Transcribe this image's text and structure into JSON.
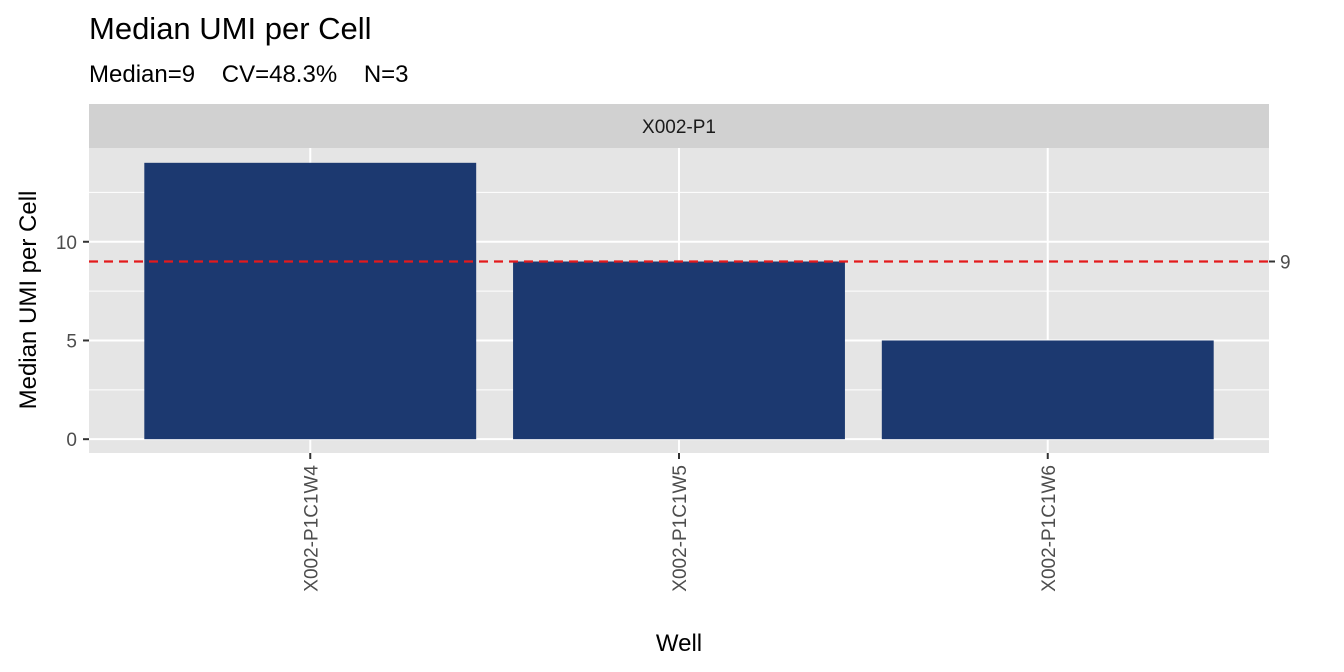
{
  "chart_data": {
    "type": "bar",
    "title": "Median UMI per Cell",
    "subtitle": "Median=9    CV=48.3%    N=3",
    "facet_label": "X002-P1",
    "xlabel": "Well",
    "ylabel": "Median UMI per Cell",
    "categories": [
      "X002-P1C1W4",
      "X002-P1C1W5",
      "X002-P1C1W6"
    ],
    "values": [
      14,
      9,
      5
    ],
    "ylim": [
      -0.7,
      14.75
    ],
    "y_ticks": [
      0,
      5,
      10
    ],
    "y_tick_labels": [
      "0",
      "5",
      "10"
    ],
    "reference_line": {
      "value": 9,
      "label": "9",
      "style": "dashed",
      "color": "#E31A1C"
    },
    "bar_color": "#1C3970",
    "panel_background": "#E5E5E5",
    "strip_background": "#D1D1D1",
    "grid": true,
    "legend": "none"
  }
}
